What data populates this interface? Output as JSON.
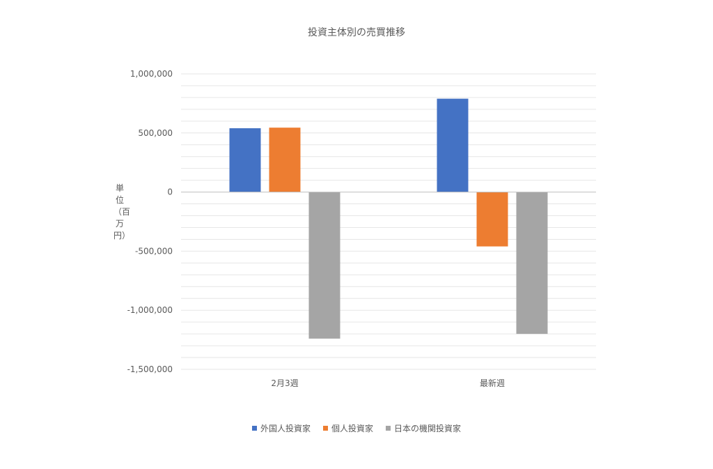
{
  "chart_data": {
    "type": "bar",
    "title": "投資主体別の売買推移",
    "xlabel": "",
    "ylabel": "単位（百万円）",
    "categories": [
      "2月3週",
      "最新週"
    ],
    "series": [
      {
        "name": "外国人投資家",
        "color": "#4472C4",
        "values": [
          540000,
          790000
        ]
      },
      {
        "name": "個人投資家",
        "color": "#ED7D31",
        "values": [
          545000,
          -460000
        ]
      },
      {
        "name": "日本の機関投資家",
        "color": "#A5A5A5",
        "values": [
          -1240000,
          -1200000
        ]
      }
    ],
    "ylim": [
      -1500000,
      1000000
    ],
    "yticks": [
      {
        "value": 1000000,
        "label": "1,000,000"
      },
      {
        "value": 500000,
        "label": "500,000"
      },
      {
        "value": 0,
        "label": "0"
      },
      {
        "value": -500000,
        "label": "-500,000"
      },
      {
        "value": -1000000,
        "label": "-1,000,000"
      },
      {
        "value": -1500000,
        "label": "-1,500,000"
      }
    ],
    "minor_grid_step": 100000,
    "grid": true,
    "legend_position": "bottom"
  }
}
